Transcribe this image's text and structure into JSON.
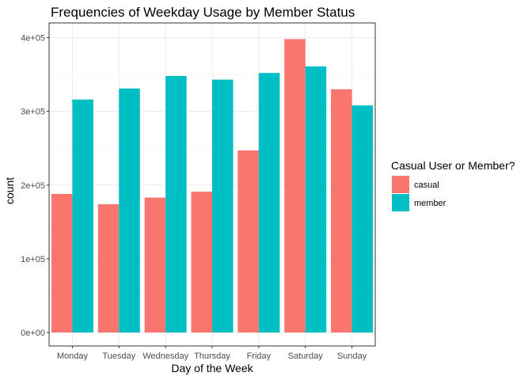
{
  "chart_data": {
    "type": "bar",
    "title": "Frequencies of Weekday Usage by Member Status",
    "xlabel": "Day of the Week",
    "ylabel": "count",
    "categories": [
      "Monday",
      "Tuesday",
      "Wednesday",
      "Thursday",
      "Friday",
      "Saturday",
      "Sunday"
    ],
    "series": [
      {
        "name": "casual",
        "color": "#F8766D",
        "values": [
          188000,
          174000,
          183000,
          191000,
          247000,
          398000,
          330000
        ]
      },
      {
        "name": "member",
        "color": "#00BFC4",
        "values": [
          316000,
          331000,
          348000,
          343000,
          352000,
          361000,
          308000
        ]
      }
    ],
    "ylim": [
      0,
      420000
    ],
    "yticks": [
      0,
      100000,
      200000,
      300000,
      400000
    ],
    "ytick_labels": [
      "0e+00",
      "1e+05",
      "2e+05",
      "3e+05",
      "4e+05"
    ],
    "grid": true,
    "legend": {
      "title": "Casual User or Member?",
      "position": "right"
    }
  }
}
